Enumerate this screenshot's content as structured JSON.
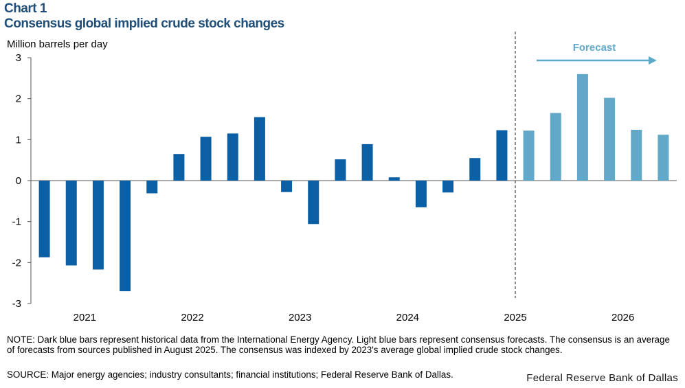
{
  "title": "Chart 1",
  "subtitle": "Consensus global implied crude stock changes",
  "note": "NOTE: Dark blue bars represent historical data from the International Energy Agency. Light blue bars represent consensus forecasts. The consensus is an average of forecasts from sources published in August 2025. The consensus was indexed by 2023's average global implied crude stock changes.",
  "source": "SOURCE: Major energy agencies; industry consultants; financial institutions; Federal Reserve Bank of Dallas.",
  "credit": "Federal Reserve Bank of Dallas",
  "colors": {
    "historical": "#0b5fa5",
    "forecast": "#62a9c9",
    "title": "#1f4e79",
    "forecast_label": "#5fa8c8"
  },
  "chart_data": {
    "type": "bar",
    "title": "Consensus global implied crude stock changes",
    "ylabel": "Million barrels per day",
    "xlabel": "",
    "ylim": [
      -3,
      3
    ],
    "yticks": [
      3,
      2,
      1,
      0,
      -1,
      -2,
      -3
    ],
    "year_labels": [
      "2021",
      "2022",
      "2023",
      "2024",
      "2025",
      "2026"
    ],
    "categories": [
      "2021 Q1",
      "2021 Q2",
      "2021 Q3",
      "2021 Q4",
      "2022 Q1",
      "2022 Q2",
      "2022 Q3",
      "2022 Q4",
      "2023 Q1",
      "2023 Q2",
      "2023 Q3",
      "2023 Q4",
      "2024 Q1",
      "2024 Q2",
      "2024 Q3",
      "2024 Q4",
      "2025 Q1",
      "2025 Q2",
      "2025 Q3",
      "2025 Q4",
      "2026 Q1",
      "2026 Q2",
      "2026 Q3",
      "2026 Q4"
    ],
    "series": [
      {
        "name": "Historical (IEA)",
        "values": [
          -1.87,
          -2.07,
          -2.17,
          -2.7,
          -0.31,
          0.65,
          1.07,
          1.15,
          1.55,
          -0.28,
          -1.06,
          0.52,
          0.89,
          0.08,
          -0.65,
          -0.29,
          0.55,
          1.23,
          null,
          null,
          null,
          null,
          null,
          null
        ]
      },
      {
        "name": "Consensus forecast",
        "values": [
          null,
          null,
          null,
          null,
          null,
          null,
          null,
          null,
          null,
          null,
          null,
          null,
          null,
          null,
          null,
          null,
          null,
          null,
          1.22,
          1.65,
          2.6,
          2.02,
          1.24,
          1.12
        ]
      }
    ],
    "annotation": "Forecast"
  }
}
